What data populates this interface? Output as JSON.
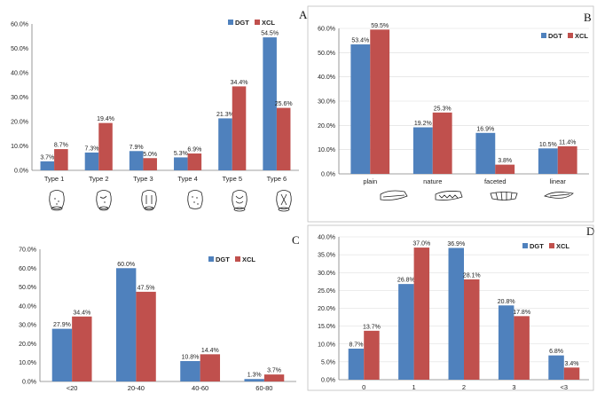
{
  "colors": {
    "DGT": "#4f81bd",
    "XCL": "#c0504d"
  },
  "chart_data": [
    {
      "panel": "A",
      "type": "bar",
      "categories": [
        "Type 1",
        "Type 2",
        "Type 3",
        "Type 4",
        "Type 5",
        "Type 6"
      ],
      "series": [
        {
          "name": "DGT",
          "values": [
            3.7,
            7.3,
            7.9,
            5.3,
            21.3,
            54.5
          ]
        },
        {
          "name": "XCL",
          "values": [
            8.7,
            19.4,
            5.0,
            6.9,
            34.4,
            25.6
          ]
        }
      ],
      "ylim": [
        0,
        60
      ],
      "yticks": [
        "0.0%",
        "10.0%",
        "20.0%",
        "30.0%",
        "40.0%",
        "50.0%",
        "60.0%"
      ],
      "grid": false,
      "legend": "top-right",
      "category_icons": [
        "type-1-icon",
        "type-2-icon",
        "type-3-icon",
        "type-4-icon",
        "type-5-icon",
        "type-6-icon"
      ]
    },
    {
      "panel": "B",
      "type": "bar",
      "categories": [
        "plain",
        "nature",
        "faceted",
        "linear"
      ],
      "series": [
        {
          "name": "DGT",
          "values": [
            53.4,
            19.2,
            16.9,
            10.5
          ]
        },
        {
          "name": "XCL",
          "values": [
            59.5,
            25.3,
            3.8,
            11.4
          ]
        }
      ],
      "ylim": [
        0,
        60
      ],
      "yticks": [
        "0.0%",
        "10.0%",
        "20.0%",
        "30.0%",
        "40.0%",
        "50.0%",
        "60.0%"
      ],
      "grid": true,
      "legend": "top-right",
      "category_icons": [
        "plain-platform-icon",
        "nature-platform-icon",
        "faceted-platform-icon",
        "linear-platform-icon"
      ]
    },
    {
      "panel": "C",
      "type": "bar",
      "categories": [
        "<20",
        "20-40",
        "40-60",
        "60-80"
      ],
      "series": [
        {
          "name": "DGT",
          "values": [
            27.9,
            60.0,
            10.8,
            1.3
          ]
        },
        {
          "name": "XCL",
          "values": [
            34.4,
            47.5,
            14.4,
            3.7
          ]
        }
      ],
      "ylim": [
        0,
        70
      ],
      "yticks": [
        "0.0%",
        "10.0%",
        "20.0%",
        "30.0%",
        "40.0%",
        "50.0%",
        "60.0%",
        "70.0%"
      ],
      "grid": false,
      "legend": "top-right"
    },
    {
      "panel": "D",
      "type": "bar",
      "categories": [
        "0",
        "1",
        "2",
        "3",
        "<3"
      ],
      "series": [
        {
          "name": "DGT",
          "values": [
            8.7,
            26.8,
            36.9,
            20.8,
            6.8
          ]
        },
        {
          "name": "XCL",
          "values": [
            13.7,
            37.0,
            28.1,
            17.8,
            3.4
          ]
        }
      ],
      "ylim": [
        0,
        40
      ],
      "yticks": [
        "0.0%",
        "5.0%",
        "10.0%",
        "15.0%",
        "20.0%",
        "25.0%",
        "30.0%",
        "35.0%",
        "40.0%"
      ],
      "grid": true,
      "legend": "top-right"
    }
  ]
}
